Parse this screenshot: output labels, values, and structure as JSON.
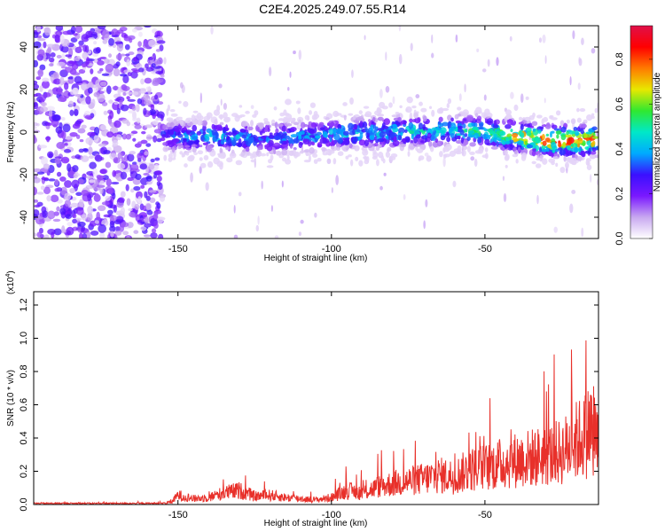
{
  "title": "C2E4.2025.249.07.55.R14",
  "colors": {
    "background": "#ffffff",
    "axis": "#000000",
    "snr_line": "#e8302a",
    "colormap": [
      "#ffffff",
      "#c8a8f0",
      "#7a18ff",
      "#3a10ff",
      "#00aaff",
      "#00e8c8",
      "#30e830",
      "#e8e800",
      "#ff7a00",
      "#ff0000",
      "#e0104a"
    ]
  },
  "chart_data": [
    {
      "type": "heatmap",
      "title": "",
      "xlabel": "Height of straight line (km)",
      "ylabel": "Frequency (Hz)",
      "xlim": [
        -197,
        -13
      ],
      "ylim": [
        -50,
        50
      ],
      "xticks": [
        -150,
        -100,
        -50
      ],
      "yticks": [
        -40,
        -20,
        0,
        20,
        40
      ],
      "colorbar": {
        "label": "Normalized spectral amplitude",
        "range": [
          0,
          0.95
        ],
        "ticks": [
          0.0,
          0.2,
          0.4,
          0.6,
          0.8
        ]
      },
      "ridge": {
        "x": [
          -155,
          -140,
          -120,
          -100,
          -80,
          -60,
          -50,
          -40,
          -30,
          -20,
          -13
        ],
        "frequency": [
          -2,
          -2,
          -3,
          -1,
          0,
          1,
          0,
          -2,
          -4,
          -4,
          -3
        ],
        "amplitude": [
          0.35,
          0.45,
          0.4,
          0.45,
          0.5,
          0.5,
          0.6,
          0.75,
          0.85,
          0.9,
          0.85
        ]
      },
      "noise_region": {
        "x_from": -197,
        "x_to": -155,
        "amplitude": 0.3
      }
    },
    {
      "type": "line",
      "title": "",
      "xlabel": "Height of straight line (km)",
      "ylabel": "SNR (10 * v/v)",
      "scale_label": "(x10",
      "scale_exponent": "4",
      "scale_suffix": ")",
      "xlim": [
        -197,
        -13
      ],
      "ylim": [
        0,
        1.28
      ],
      "xticks": [
        -150,
        -100,
        -50
      ],
      "yticks": [
        0.0,
        0.2,
        0.4,
        0.6,
        0.8,
        1.0,
        1.2
      ],
      "series": [
        {
          "x": [
            -197,
            -155,
            -152,
            -150,
            -145,
            -140,
            -135,
            -130,
            -125,
            -120,
            -115,
            -110,
            -105,
            -100,
            -95,
            -90,
            -85,
            -80,
            -75,
            -70,
            -65,
            -60,
            -55,
            -50,
            -45,
            -40,
            -35,
            -30,
            -25,
            -20,
            -17,
            -15,
            -13
          ],
          "values": [
            0.01,
            0.01,
            0.02,
            0.08,
            0.05,
            0.06,
            0.1,
            0.12,
            0.07,
            0.08,
            0.06,
            0.05,
            0.04,
            0.06,
            0.12,
            0.1,
            0.15,
            0.18,
            0.2,
            0.22,
            0.25,
            0.24,
            0.3,
            0.32,
            0.35,
            0.38,
            0.4,
            0.42,
            0.45,
            0.55,
            0.6,
            0.7,
            0.45
          ]
        }
      ]
    }
  ]
}
